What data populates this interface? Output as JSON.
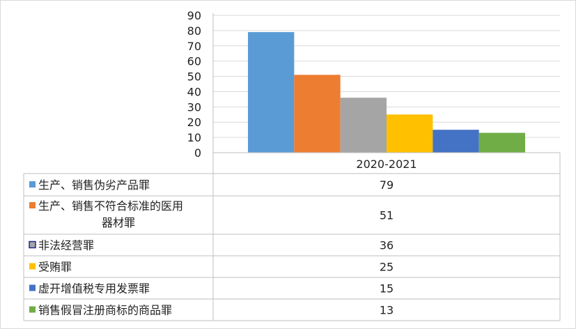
{
  "chart_data": {
    "type": "bar",
    "title": "",
    "xlabel": "",
    "ylabel": "",
    "categories": [
      "2020-2021"
    ],
    "ylim": [
      0,
      90
    ],
    "yticks": [
      0,
      10,
      20,
      30,
      40,
      50,
      60,
      70,
      80,
      90
    ],
    "grid": true,
    "legend": "data-table-left",
    "series": [
      {
        "name": "生产、销售伪劣产品罪",
        "values": [
          79
        ],
        "color": "#5B9BD5"
      },
      {
        "name": "生产、销售不符合标准的医用器材罪",
        "values": [
          51
        ],
        "color": "#ED7D31"
      },
      {
        "name": "非法经营罪",
        "values": [
          36
        ],
        "color": "#A5A5A5"
      },
      {
        "name": "受贿罪",
        "values": [
          25
        ],
        "color": "#FFC000"
      },
      {
        "name": "虚开增值税专用发票罪",
        "values": [
          15
        ],
        "color": "#4472C4"
      },
      {
        "name": "销售假冒注册商标的商品罪",
        "values": [
          13
        ],
        "color": "#70AD47"
      }
    ]
  }
}
